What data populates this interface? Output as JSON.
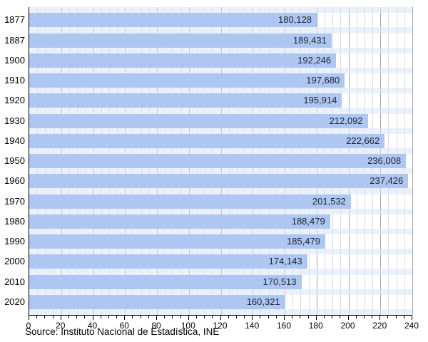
{
  "chart_data": {
    "type": "bar",
    "orientation": "horizontal",
    "title": "",
    "categories": [
      "1877",
      "1887",
      "1900",
      "1910",
      "1920",
      "1930",
      "1940",
      "1950",
      "1960",
      "1970",
      "1980",
      "1990",
      "2000",
      "2010",
      "2020"
    ],
    "values": [
      180128,
      189431,
      192246,
      197680,
      195914,
      212092,
      222662,
      236008,
      237426,
      201532,
      188479,
      185479,
      174143,
      170513,
      160321
    ],
    "value_labels": [
      "180,128",
      "189,431",
      "192,246",
      "197,680",
      "195,914",
      "212,092",
      "222,662",
      "236,008",
      "237,426",
      "201,532",
      "188,479",
      "185,479",
      "174,143",
      "170,513",
      "160,321"
    ],
    "xlabel": "",
    "ylabel": "",
    "xlim": [
      0,
      240
    ],
    "x_major_ticks": [
      0,
      20,
      40,
      60,
      80,
      100,
      120,
      140,
      160,
      180,
      200,
      220,
      240
    ],
    "x_minor_step": 5,
    "value_axis_divisor": 1000,
    "grid": {
      "minor_step": 5,
      "major_step": 20,
      "enabled": true
    },
    "legend": "none"
  },
  "source_note": "Source: Instituto Nacional de Estadística, INE",
  "colors": {
    "bar": "#aec6f2",
    "gap_tint": "rgba(216,230,248,0.55)",
    "grid_minor": "#dcdcdc",
    "grid_major": "#a6a6a6",
    "axis": "#000000",
    "bar_label_text": "#1f2430",
    "tick_label_text": "#000000"
  }
}
